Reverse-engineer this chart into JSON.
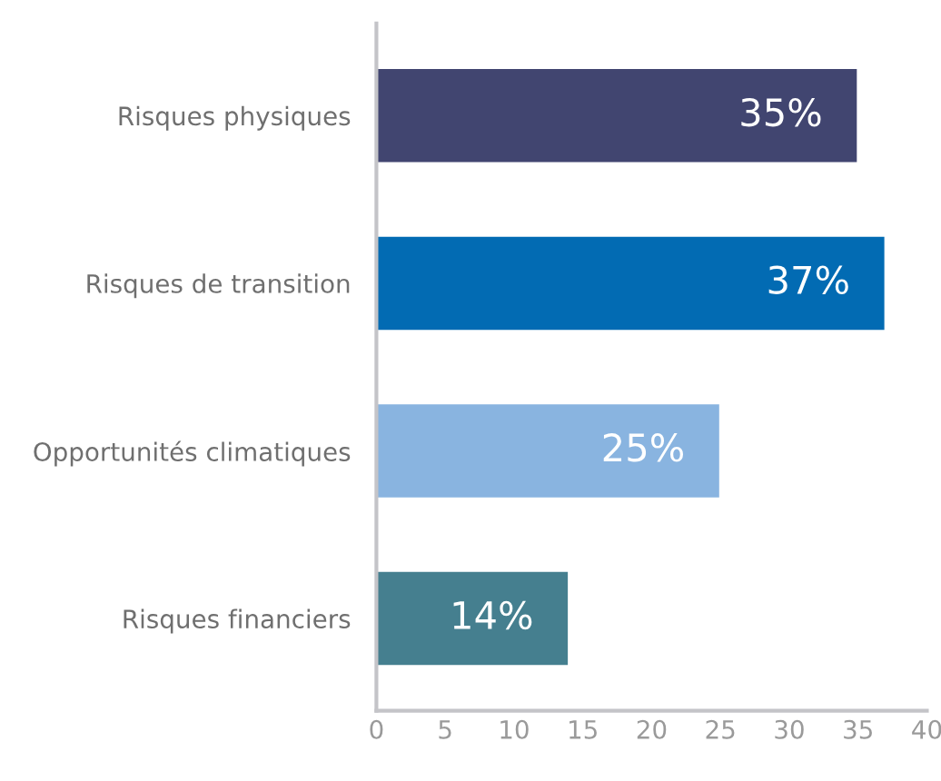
{
  "chart_data": {
    "type": "bar",
    "orientation": "horizontal",
    "categories": [
      "Risques physiques",
      "Risques de transition",
      "Opportunités climatiques",
      "Risques financiers"
    ],
    "values": [
      35,
      37,
      25,
      14
    ],
    "colors": [
      "#414570",
      "#026bb3",
      "#89b4e0",
      "#457f8f"
    ],
    "value_labels": [
      "35%",
      "37%",
      "25%",
      "14%"
    ],
    "xlim": [
      0,
      40
    ],
    "xticks": [
      0,
      5,
      10,
      15,
      20,
      25,
      30,
      35,
      40
    ],
    "grid": false,
    "legend": false
  }
}
